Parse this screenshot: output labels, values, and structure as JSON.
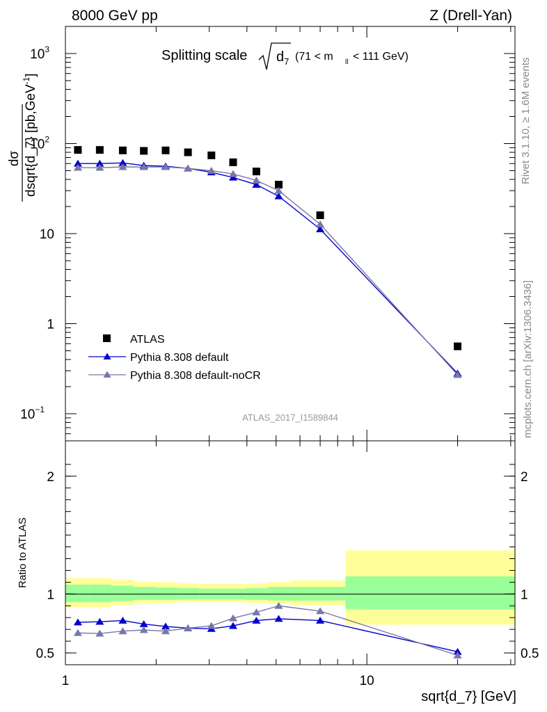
{
  "header": {
    "left": "8000 GeV pp",
    "right": "Z (Drell-Yan)",
    "plot_title": "Splitting scale",
    "plot_title_cut": "(71 < m",
    "plot_title_cut_sub": "ll",
    "plot_title_cut_tail": "< 111 GeV)",
    "analysis_id": "ATLAS_2017_I1589844"
  },
  "side_text": {
    "rivet": "Rivet 3.1.10, ≥ 1.6M events",
    "mcplots": "mcplots.cern.ch [arXiv:1306.3436]"
  },
  "axes": {
    "y_main_label": "dσ/dsqrt{d_7} [pb,GeV^-1]",
    "y_ratio_label": "Ratio to ATLAS",
    "x_label": "sqrt{d_7} [GeV]",
    "main_yticks": [
      {
        "value": 0.1,
        "label": "10"
      },
      {
        "value": 1,
        "label": "1"
      },
      {
        "value": 10,
        "label": "10"
      },
      {
        "value": 100,
        "label": "10"
      },
      {
        "value": 1000,
        "label": "10"
      }
    ],
    "ratio_yticks": [
      {
        "value": 0.5,
        "label": "0.5"
      },
      {
        "value": 1,
        "label": "1"
      },
      {
        "value": 2,
        "label": "2"
      }
    ],
    "xticks": [
      {
        "value": 1,
        "label": "1"
      },
      {
        "value": 10,
        "label": "10"
      }
    ]
  },
  "legend": {
    "atlas": "ATLAS",
    "pythia_default": "Pythia 8.308 default",
    "pythia_nocr": "Pythia 8.308 default-noCR"
  },
  "colors": {
    "atlas": "#000000",
    "pythia_default": "#0000cc",
    "pythia_nocr": "#7777aa",
    "band_stat": "#99ff99",
    "band_total": "#ffff99"
  },
  "chart_data": [
    {
      "type": "line",
      "panel": "main",
      "title": "Splitting scale √d7 (71 < m_ll < 111 GeV)",
      "xlabel": "sqrt{d_7} [GeV]",
      "ylabel": "dσ/dsqrt{d_7} [pb,GeV^-1]",
      "xscale": "log",
      "yscale": "log",
      "xlim": [
        1,
        31
      ],
      "ylim": [
        0.05,
        2000
      ],
      "legend_position": "lower-left",
      "x": [
        1.1,
        1.3,
        1.55,
        1.82,
        2.15,
        2.55,
        3.05,
        3.6,
        4.3,
        5.1,
        7.0,
        20.0
      ],
      "series": [
        {
          "name": "ATLAS",
          "style": "marker",
          "values": [
            85,
            85,
            84,
            83,
            84,
            80,
            74,
            62,
            49,
            35,
            16,
            0.56
          ]
        },
        {
          "name": "Pythia 8.308 default",
          "style": "line-triangle",
          "values": [
            60,
            60,
            61,
            57,
            56,
            53,
            48,
            42,
            35,
            26,
            11.2,
            0.28
          ]
        },
        {
          "name": "Pythia 8.308 default-noCR",
          "style": "line-triangle",
          "values": [
            54,
            54,
            55,
            55,
            55,
            53,
            50,
            46,
            39,
            30,
            12.7,
            0.27
          ]
        }
      ]
    },
    {
      "type": "line",
      "panel": "ratio",
      "ylabel": "Ratio to ATLAS",
      "xlabel": "sqrt{d_7} [GeV]",
      "xscale": "log",
      "xlim": [
        1,
        31
      ],
      "ylim": [
        0.4,
        2.3
      ],
      "x": [
        1.1,
        1.3,
        1.55,
        1.82,
        2.15,
        2.55,
        3.05,
        3.6,
        4.3,
        5.1,
        7.0,
        20.0
      ],
      "series": [
        {
          "name": "Pythia 8.308 default",
          "values": [
            0.76,
            0.765,
            0.775,
            0.745,
            0.725,
            0.71,
            0.705,
            0.73,
            0.775,
            0.79,
            0.775,
            0.51
          ]
        },
        {
          "name": "Pythia 8.308 default-noCR",
          "values": [
            0.67,
            0.665,
            0.685,
            0.695,
            0.685,
            0.71,
            0.73,
            0.795,
            0.845,
            0.9,
            0.855,
            0.48
          ]
        }
      ],
      "bands": {
        "edges": [
          1.0,
          1.2,
          1.42,
          1.68,
          1.98,
          2.35,
          2.78,
          3.3,
          3.95,
          4.7,
          5.6,
          8.5,
          31
        ],
        "stat_lo": [
          0.93,
          0.93,
          0.94,
          0.95,
          0.95,
          0.955,
          0.955,
          0.955,
          0.95,
          0.945,
          0.945,
          0.87
        ],
        "stat_hi": [
          1.08,
          1.08,
          1.07,
          1.06,
          1.055,
          1.05,
          1.045,
          1.045,
          1.05,
          1.06,
          1.06,
          1.15
        ],
        "total_lo": [
          0.89,
          0.89,
          0.905,
          0.92,
          0.925,
          0.93,
          0.93,
          0.93,
          0.925,
          0.915,
          0.905,
          0.74
        ],
        "total_hi": [
          1.135,
          1.135,
          1.12,
          1.105,
          1.1,
          1.09,
          1.085,
          1.085,
          1.09,
          1.1,
          1.115,
          1.37
        ]
      }
    }
  ]
}
